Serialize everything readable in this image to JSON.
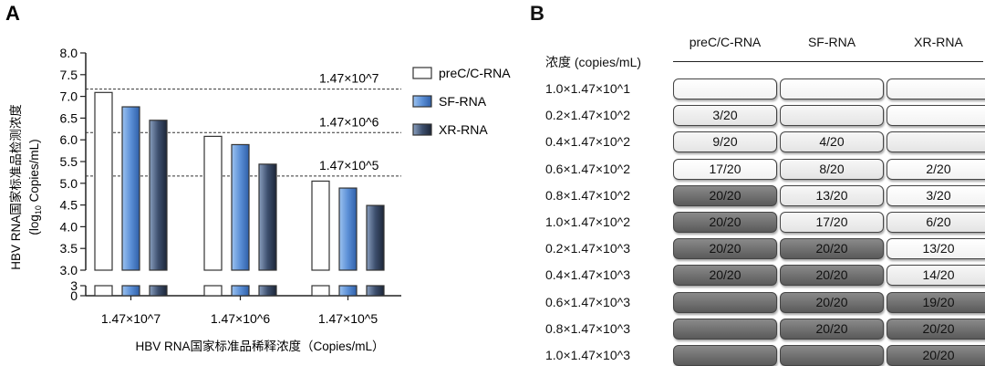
{
  "chart_data": [
    {
      "panel": "A",
      "type": "bar",
      "ylabel": "HBV RNA国家标准品检测浓度",
      "ylabel_line2": "(log10 Copies/mL)",
      "xlabel": "HBV RNA国家标准品稀释浓度（Copies/mL）",
      "categories": [
        "1.47×10^7",
        "1.47×10^6",
        "1.47×10^5"
      ],
      "series": [
        {
          "name": "preC/C-RNA",
          "values": [
            7.09,
            6.08,
            5.05
          ],
          "color": "#ffffff"
        },
        {
          "name": "SF-RNA",
          "values": [
            6.76,
            5.89,
            4.89
          ],
          "color": "#5b8fd6"
        },
        {
          "name": "XR-RNA",
          "values": [
            6.45,
            5.44,
            4.49
          ],
          "color": "#3d4f6e"
        }
      ],
      "reference_lines": [
        {
          "value": 7.167,
          "label": "1.47×10^7"
        },
        {
          "value": 6.167,
          "label": "1.47×10^6"
        },
        {
          "value": 5.167,
          "label": "1.47×10^5"
        }
      ],
      "yticks_upper": [
        "3.0",
        "3.5",
        "4.0",
        "4.5",
        "5.0",
        "5.5",
        "6.0",
        "6.5",
        "7.0",
        "7.5",
        "8.0"
      ],
      "yticks_lower": [
        "0",
        "3"
      ],
      "y_break": true,
      "ylim": [
        0,
        8
      ],
      "legend_position": "right"
    },
    {
      "panel": "B",
      "type": "table",
      "row_header": "浓度 (copies/mL)",
      "columns": [
        "preC/C-RNA",
        "SF-RNA",
        "XR-RNA"
      ],
      "rows": [
        {
          "label": "1.0×1.47×10^1",
          "cells": [
            {
              "text": "",
              "level": "white"
            },
            {
              "text": "",
              "level": "white"
            },
            {
              "text": "",
              "level": "white"
            }
          ]
        },
        {
          "label": "0.2×1.47×10^2",
          "cells": [
            {
              "text": "3/20",
              "level": "light"
            },
            {
              "text": "",
              "level": "light"
            },
            {
              "text": "",
              "level": "white"
            }
          ]
        },
        {
          "label": "0.4×1.47×10^2",
          "cells": [
            {
              "text": "9/20",
              "level": "light"
            },
            {
              "text": "4/20",
              "level": "light"
            },
            {
              "text": "",
              "level": "light"
            }
          ]
        },
        {
          "label": "0.6×1.47×10^2",
          "cells": [
            {
              "text": "17/20",
              "level": "white"
            },
            {
              "text": "8/20",
              "level": "light"
            },
            {
              "text": "2/20",
              "level": "white"
            }
          ]
        },
        {
          "label": "0.8×1.47×10^2",
          "cells": [
            {
              "text": "20/20",
              "level": "dark"
            },
            {
              "text": "13/20",
              "level": "light"
            },
            {
              "text": "3/20",
              "level": "white"
            }
          ]
        },
        {
          "label": "1.0×1.47×10^2",
          "cells": [
            {
              "text": "20/20",
              "level": "dark"
            },
            {
              "text": "17/20",
              "level": "light"
            },
            {
              "text": "6/20",
              "level": "light"
            }
          ]
        },
        {
          "label": "0.2×1.47×10^3",
          "cells": [
            {
              "text": "20/20",
              "level": "dark"
            },
            {
              "text": "20/20",
              "level": "dark"
            },
            {
              "text": "13/20",
              "level": "white"
            }
          ]
        },
        {
          "label": "0.4×1.47×10^3",
          "cells": [
            {
              "text": "20/20",
              "level": "dark"
            },
            {
              "text": "20/20",
              "level": "dark"
            },
            {
              "text": "14/20",
              "level": "light"
            }
          ]
        },
        {
          "label": "0.6×1.47×10^3",
          "cells": [
            {
              "text": "",
              "level": "dark"
            },
            {
              "text": "20/20",
              "level": "dark"
            },
            {
              "text": "19/20",
              "level": "dark"
            }
          ]
        },
        {
          "label": "0.8×1.47×10^3",
          "cells": [
            {
              "text": "",
              "level": "dark"
            },
            {
              "text": "20/20",
              "level": "dark"
            },
            {
              "text": "20/20",
              "level": "dark"
            }
          ]
        },
        {
          "label": "1.0×1.47×10^3",
          "cells": [
            {
              "text": "",
              "level": "dark"
            },
            {
              "text": "",
              "level": "dark"
            },
            {
              "text": "20/20",
              "level": "dark"
            }
          ]
        }
      ]
    }
  ],
  "panels": {
    "a_label": "A",
    "b_label": "B"
  }
}
